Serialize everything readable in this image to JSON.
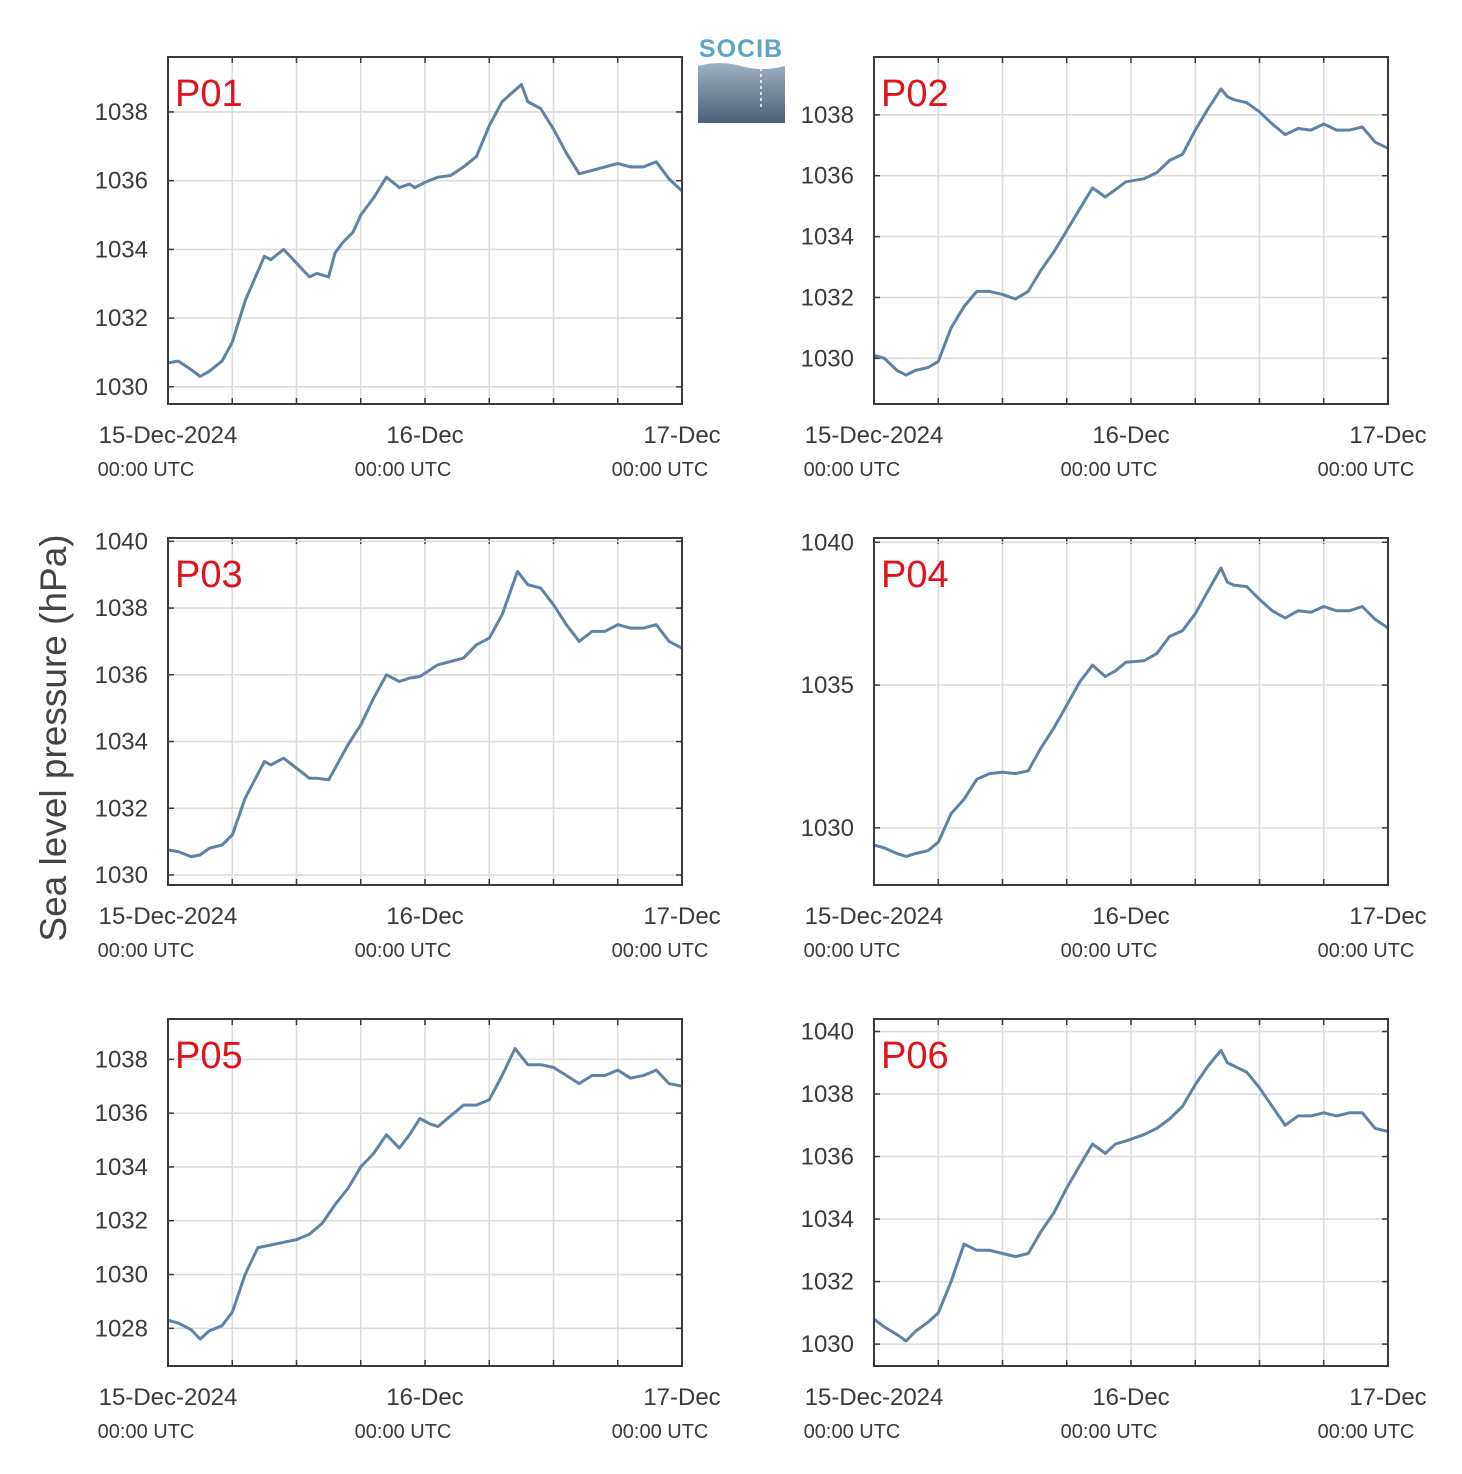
{
  "ylabel": "Sea level pressure (hPa)",
  "logo": {
    "text": "SOCIB"
  },
  "xaxis": {
    "ticks": [
      {
        "day": 0,
        "main": "15-Dec-2024",
        "sub": "00:00 UTC"
      },
      {
        "day": 1,
        "main": "16-Dec",
        "sub": "00:00 UTC"
      },
      {
        "day": 2,
        "main": "17-Dec",
        "sub": "00:00 UTC"
      }
    ]
  },
  "colors": {
    "line": "#5f82a6",
    "panel_label": "#e0121b",
    "grid": "#dcdcdc",
    "axes": "#3a3a3a"
  },
  "chart_data": [
    {
      "type": "line",
      "panel": "P01",
      "xlim": [
        0,
        2
      ],
      "ylim": [
        1029.5,
        1039.6
      ],
      "yticks": [
        1030,
        1032,
        1034,
        1036,
        1038
      ],
      "x": [
        0,
        0.04,
        0.09,
        0.125,
        0.16,
        0.21,
        0.25,
        0.3,
        0.375,
        0.4,
        0.45,
        0.5,
        0.55,
        0.58,
        0.625,
        0.65,
        0.68,
        0.72,
        0.75,
        0.8,
        0.85,
        0.9,
        0.94,
        0.96,
        1.0,
        1.05,
        1.1,
        1.15,
        1.2,
        1.25,
        1.3,
        1.375,
        1.4,
        1.45,
        1.5,
        1.55,
        1.6,
        1.65,
        1.7,
        1.75,
        1.8,
        1.85,
        1.9,
        1.95,
        2.0
      ],
      "y": [
        1030.7,
        1030.75,
        1030.5,
        1030.3,
        1030.45,
        1030.75,
        1031.3,
        1032.5,
        1033.8,
        1033.7,
        1034.0,
        1033.6,
        1033.2,
        1033.3,
        1033.2,
        1033.9,
        1034.2,
        1034.5,
        1035.0,
        1035.5,
        1036.1,
        1035.8,
        1035.9,
        1035.8,
        1035.95,
        1036.1,
        1036.15,
        1036.4,
        1036.7,
        1037.6,
        1038.3,
        1038.8,
        1038.3,
        1038.1,
        1037.5,
        1036.8,
        1036.2,
        1036.3,
        1036.4,
        1036.5,
        1036.4,
        1036.4,
        1036.55,
        1036.05,
        1035.7
      ]
    },
    {
      "type": "line",
      "panel": "P02",
      "xlim": [
        0,
        2
      ],
      "ylim": [
        1028.5,
        1039.9
      ],
      "yticks": [
        1030,
        1032,
        1034,
        1036,
        1038
      ],
      "x": [
        0,
        0.04,
        0.09,
        0.125,
        0.16,
        0.21,
        0.25,
        0.3,
        0.35,
        0.4,
        0.45,
        0.5,
        0.55,
        0.6,
        0.65,
        0.7,
        0.75,
        0.8,
        0.85,
        0.9,
        0.94,
        0.98,
        1.05,
        1.1,
        1.15,
        1.2,
        1.25,
        1.3,
        1.35,
        1.375,
        1.4,
        1.45,
        1.5,
        1.55,
        1.6,
        1.65,
        1.7,
        1.75,
        1.8,
        1.85,
        1.9,
        1.95,
        2.0
      ],
      "y": [
        1030.1,
        1030.0,
        1029.6,
        1029.45,
        1029.6,
        1029.7,
        1029.9,
        1031.0,
        1031.7,
        1032.2,
        1032.2,
        1032.1,
        1031.95,
        1032.2,
        1032.9,
        1033.5,
        1034.2,
        1034.9,
        1035.6,
        1035.3,
        1035.55,
        1035.8,
        1035.9,
        1036.1,
        1036.5,
        1036.7,
        1037.5,
        1038.2,
        1038.85,
        1038.6,
        1038.5,
        1038.4,
        1038.1,
        1037.7,
        1037.35,
        1037.55,
        1037.5,
        1037.7,
        1037.5,
        1037.5,
        1037.6,
        1037.1,
        1036.9
      ]
    },
    {
      "type": "line",
      "panel": "P03",
      "xlim": [
        0,
        2
      ],
      "ylim": [
        1029.7,
        1040.1
      ],
      "yticks": [
        1030,
        1032,
        1034,
        1036,
        1038,
        1040
      ],
      "x": [
        0,
        0.04,
        0.09,
        0.125,
        0.16,
        0.21,
        0.25,
        0.3,
        0.375,
        0.4,
        0.45,
        0.5,
        0.55,
        0.58,
        0.625,
        0.65,
        0.7,
        0.75,
        0.8,
        0.85,
        0.9,
        0.94,
        0.98,
        1.05,
        1.1,
        1.15,
        1.2,
        1.25,
        1.3,
        1.36,
        1.4,
        1.45,
        1.5,
        1.55,
        1.6,
        1.65,
        1.7,
        1.75,
        1.8,
        1.85,
        1.9,
        1.95,
        2.0
      ],
      "y": [
        1030.75,
        1030.7,
        1030.55,
        1030.6,
        1030.8,
        1030.9,
        1031.2,
        1032.3,
        1033.4,
        1033.3,
        1033.5,
        1033.2,
        1032.9,
        1032.9,
        1032.85,
        1033.2,
        1033.9,
        1034.5,
        1035.3,
        1036.0,
        1035.8,
        1035.9,
        1035.95,
        1036.3,
        1036.4,
        1036.5,
        1036.9,
        1037.1,
        1037.8,
        1039.1,
        1038.7,
        1038.6,
        1038.1,
        1037.5,
        1037.0,
        1037.3,
        1037.3,
        1037.5,
        1037.4,
        1037.4,
        1037.5,
        1037.0,
        1036.8
      ]
    },
    {
      "type": "line",
      "panel": "P04",
      "xlim": [
        0,
        2
      ],
      "ylim": [
        1028.0,
        1040.15
      ],
      "yticks": [
        1030,
        1035,
        1040
      ],
      "x": [
        0,
        0.04,
        0.09,
        0.125,
        0.16,
        0.21,
        0.25,
        0.3,
        0.35,
        0.4,
        0.45,
        0.5,
        0.55,
        0.6,
        0.65,
        0.7,
        0.75,
        0.8,
        0.85,
        0.9,
        0.94,
        0.98,
        1.05,
        1.1,
        1.15,
        1.2,
        1.25,
        1.3,
        1.35,
        1.375,
        1.4,
        1.45,
        1.5,
        1.55,
        1.6,
        1.65,
        1.7,
        1.75,
        1.8,
        1.85,
        1.9,
        1.95,
        2.0
      ],
      "y": [
        1029.4,
        1029.3,
        1029.1,
        1029.0,
        1029.1,
        1029.2,
        1029.5,
        1030.5,
        1031.0,
        1031.7,
        1031.9,
        1031.95,
        1031.9,
        1032.0,
        1032.8,
        1033.5,
        1034.3,
        1035.1,
        1035.7,
        1035.3,
        1035.5,
        1035.8,
        1035.85,
        1036.1,
        1036.7,
        1036.9,
        1037.5,
        1038.3,
        1039.1,
        1038.6,
        1038.5,
        1038.45,
        1038.0,
        1037.6,
        1037.35,
        1037.6,
        1037.55,
        1037.75,
        1037.6,
        1037.6,
        1037.75,
        1037.3,
        1037.0
      ]
    },
    {
      "type": "line",
      "panel": "P05",
      "xlim": [
        0,
        2
      ],
      "ylim": [
        1026.6,
        1039.5
      ],
      "yticks": [
        1028,
        1030,
        1032,
        1034,
        1036,
        1038
      ],
      "x": [
        0,
        0.04,
        0.09,
        0.125,
        0.16,
        0.21,
        0.25,
        0.3,
        0.35,
        0.4,
        0.45,
        0.5,
        0.55,
        0.6,
        0.65,
        0.7,
        0.75,
        0.8,
        0.85,
        0.9,
        0.94,
        0.98,
        1.02,
        1.05,
        1.1,
        1.15,
        1.2,
        1.25,
        1.3,
        1.35,
        1.4,
        1.45,
        1.5,
        1.55,
        1.6,
        1.65,
        1.7,
        1.75,
        1.8,
        1.85,
        1.9,
        1.95,
        2.0
      ],
      "y": [
        1028.3,
        1028.2,
        1027.95,
        1027.6,
        1027.9,
        1028.1,
        1028.6,
        1030.0,
        1031.0,
        1031.1,
        1031.2,
        1031.3,
        1031.5,
        1031.9,
        1032.6,
        1033.2,
        1034.0,
        1034.5,
        1035.2,
        1034.7,
        1035.2,
        1035.8,
        1035.6,
        1035.5,
        1035.9,
        1036.3,
        1036.3,
        1036.5,
        1037.4,
        1038.4,
        1037.8,
        1037.8,
        1037.7,
        1037.4,
        1037.1,
        1037.4,
        1037.4,
        1037.6,
        1037.3,
        1037.4,
        1037.6,
        1037.1,
        1037.0
      ]
    },
    {
      "type": "line",
      "panel": "P06",
      "xlim": [
        0,
        2
      ],
      "ylim": [
        1029.3,
        1040.4
      ],
      "yticks": [
        1030,
        1032,
        1034,
        1036,
        1038,
        1040
      ],
      "x": [
        0,
        0.04,
        0.09,
        0.125,
        0.16,
        0.21,
        0.25,
        0.3,
        0.35,
        0.4,
        0.45,
        0.5,
        0.55,
        0.6,
        0.65,
        0.7,
        0.75,
        0.8,
        0.85,
        0.9,
        0.94,
        0.98,
        1.05,
        1.1,
        1.15,
        1.2,
        1.25,
        1.3,
        1.35,
        1.375,
        1.4,
        1.45,
        1.5,
        1.55,
        1.6,
        1.65,
        1.7,
        1.75,
        1.8,
        1.85,
        1.9,
        1.95,
        2.0
      ],
      "y": [
        1030.8,
        1030.55,
        1030.3,
        1030.1,
        1030.4,
        1030.7,
        1031.0,
        1032.0,
        1033.2,
        1033.0,
        1033.0,
        1032.9,
        1032.8,
        1032.9,
        1033.6,
        1034.2,
        1035.0,
        1035.7,
        1036.4,
        1036.1,
        1036.4,
        1036.5,
        1036.7,
        1036.9,
        1037.2,
        1037.6,
        1038.3,
        1038.9,
        1039.4,
        1039.0,
        1038.9,
        1038.7,
        1038.2,
        1037.6,
        1037.0,
        1037.3,
        1037.3,
        1037.4,
        1037.3,
        1037.4,
        1037.4,
        1036.9,
        1036.8
      ]
    }
  ]
}
